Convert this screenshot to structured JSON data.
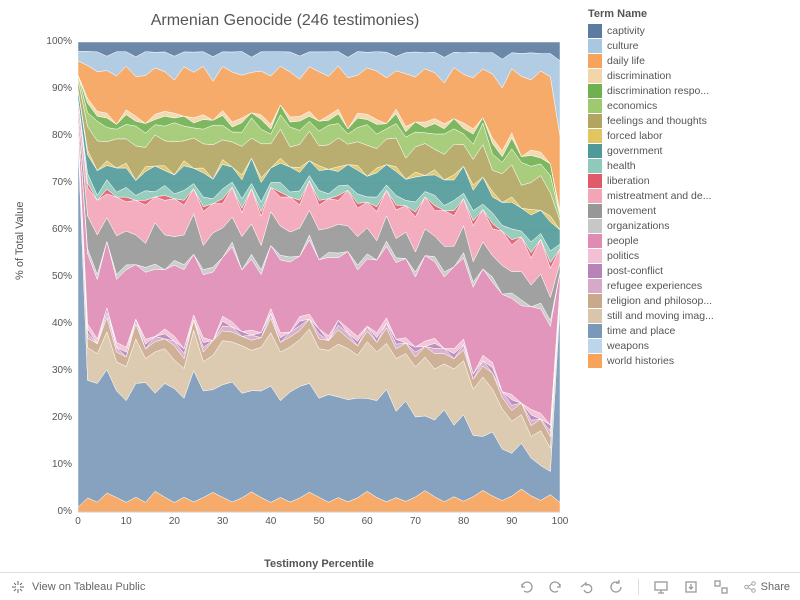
{
  "title": "Armenian Genocide (246 testimonies)",
  "y_axis_label": "% of Total Value",
  "x_axis_label": "Testimony Percentile",
  "legend_title": "Term Name",
  "toolbar_text": "View on Tableau Public",
  "share_label": "Share",
  "chart": {
    "type": "stacked-area",
    "xlim": [
      0,
      100
    ],
    "ylim": [
      0,
      100
    ],
    "xtick_step": 10,
    "ytick_step": 10,
    "background_color": "#ffffff",
    "grid_color": "#e8e8e8",
    "x": [
      0,
      2,
      4,
      6,
      8,
      10,
      12,
      14,
      16,
      18,
      20,
      22,
      24,
      26,
      28,
      30,
      32,
      34,
      36,
      38,
      40,
      42,
      44,
      46,
      48,
      50,
      52,
      54,
      56,
      58,
      60,
      62,
      64,
      66,
      68,
      70,
      72,
      74,
      76,
      78,
      80,
      82,
      84,
      86,
      88,
      90,
      92,
      94,
      96,
      98,
      100
    ],
    "series": [
      {
        "name": "world histories",
        "color": "#f7a35c",
        "values": [
          1,
          3,
          2,
          4,
          3,
          2,
          3,
          2,
          4,
          3,
          2,
          3,
          2,
          3,
          4,
          3,
          2,
          3,
          4,
          3,
          2,
          3,
          2,
          3,
          4,
          3,
          2,
          3,
          2,
          3,
          4,
          3,
          2,
          3,
          2,
          3,
          4,
          3,
          2,
          3,
          2,
          3,
          4,
          3,
          2,
          3,
          4,
          3,
          2,
          3,
          2
        ]
      },
      {
        "name": "time and place",
        "color": "#7a99b9",
        "values": [
          78,
          25,
          24,
          26,
          22,
          21,
          23,
          25,
          19,
          23,
          24,
          20,
          26,
          22,
          21,
          23,
          24,
          22,
          20,
          22,
          24,
          20,
          22,
          24,
          22,
          20,
          22,
          21,
          20,
          21,
          18,
          20,
          22,
          18,
          19,
          16,
          14,
          15,
          18,
          14,
          16,
          12,
          10,
          12,
          9,
          8,
          8,
          7,
          6,
          4,
          42
        ]
      },
      {
        "name": "still and moving imag...",
        "color": "#d9c5a9",
        "values": [
          2,
          7,
          6,
          8,
          6,
          7,
          9,
          5,
          8,
          7,
          6,
          6,
          8,
          6,
          7,
          9,
          8,
          10,
          8,
          9,
          11,
          10,
          9,
          10,
          11,
          10,
          9,
          11,
          10,
          9,
          11,
          10,
          9,
          11,
          9,
          10,
          11,
          10,
          9,
          11,
          10,
          9,
          11,
          8,
          7,
          6,
          5,
          4,
          6,
          4,
          2
        ]
      },
      {
        "name": "religion and philosop...",
        "color": "#c9a98c",
        "values": [
          1,
          2,
          2,
          3,
          2,
          2,
          3,
          2,
          2,
          2,
          3,
          2,
          2,
          2,
          3,
          2,
          2,
          2,
          2,
          2,
          3,
          2,
          2,
          2,
          2,
          2,
          2,
          3,
          2,
          2,
          2,
          2,
          3,
          2,
          2,
          2,
          2,
          3,
          2,
          2,
          2,
          2,
          2,
          3,
          2,
          2,
          2,
          2,
          2,
          2,
          1
        ]
      },
      {
        "name": "refugee experiences",
        "color": "#d6a9c9",
        "values": [
          0,
          1,
          0,
          1,
          1,
          0,
          1,
          0,
          1,
          0,
          1,
          1,
          0,
          1,
          0,
          1,
          1,
          0,
          1,
          0,
          1,
          0,
          1,
          1,
          0,
          1,
          0,
          1,
          1,
          0,
          1,
          0,
          1,
          1,
          0,
          1,
          0,
          1,
          1,
          0,
          1,
          0,
          1,
          0,
          1,
          1,
          0,
          1,
          0,
          1,
          0
        ]
      },
      {
        "name": "post-conflict",
        "color": "#b884b8",
        "values": [
          0,
          1,
          0,
          1,
          0,
          1,
          0,
          1,
          0,
          1,
          0,
          1,
          0,
          1,
          0,
          1,
          0,
          1,
          0,
          1,
          0,
          1,
          0,
          1,
          0,
          1,
          0,
          1,
          0,
          1,
          0,
          1,
          0,
          1,
          0,
          1,
          0,
          1,
          0,
          1,
          0,
          1,
          0,
          1,
          0,
          1,
          0,
          1,
          0,
          1,
          0
        ]
      },
      {
        "name": "politics",
        "color": "#f2bfd4",
        "values": [
          0,
          1,
          1,
          0,
          1,
          1,
          0,
          1,
          0,
          1,
          1,
          0,
          1,
          1,
          0,
          1,
          1,
          0,
          1,
          0,
          1,
          1,
          0,
          1,
          1,
          0,
          1,
          0,
          1,
          1,
          0,
          1,
          1,
          0,
          1,
          0,
          1,
          1,
          0,
          1,
          1,
          0,
          1,
          1,
          0,
          1,
          0,
          1,
          1,
          0,
          1
        ]
      },
      {
        "name": "people",
        "color": "#e08bb4",
        "values": [
          2,
          15,
          12,
          14,
          13,
          16,
          11,
          14,
          13,
          12,
          15,
          16,
          12,
          13,
          14,
          12,
          15,
          13,
          14,
          12,
          13,
          15,
          14,
          13,
          15,
          14,
          16,
          13,
          15,
          14,
          13,
          15,
          14,
          16,
          15,
          14,
          16,
          15,
          14,
          16,
          15,
          17,
          16,
          15,
          17,
          18,
          17,
          19,
          18,
          17,
          3
        ]
      },
      {
        "name": "organizations",
        "color": "#c7c7c7",
        "values": [
          0,
          1,
          1,
          0,
          1,
          1,
          0,
          1,
          1,
          0,
          1,
          1,
          0,
          1,
          1,
          0,
          1,
          0,
          1,
          1,
          0,
          1,
          1,
          0,
          1,
          0,
          1,
          1,
          0,
          1,
          1,
          0,
          1,
          1,
          0,
          1,
          0,
          1,
          1,
          0,
          1,
          1,
          0,
          1,
          0,
          1,
          1,
          0,
          1,
          1,
          0
        ]
      },
      {
        "name": "movement",
        "color": "#979797",
        "values": [
          2,
          7,
          8,
          5,
          8,
          7,
          6,
          5,
          8,
          7,
          5,
          6,
          8,
          5,
          7,
          6,
          5,
          7,
          6,
          5,
          7,
          6,
          5,
          6,
          5,
          6,
          5,
          6,
          5,
          6,
          5,
          4,
          5,
          4,
          5,
          4,
          5,
          4,
          5,
          4,
          5,
          4,
          5,
          4,
          5,
          4,
          5,
          4,
          5,
          4,
          2
        ]
      },
      {
        "name": "mistreatment and de...",
        "color": "#f3a5b8",
        "values": [
          2,
          6,
          7,
          5,
          8,
          6,
          7,
          8,
          5,
          7,
          8,
          6,
          5,
          7,
          6,
          5,
          6,
          5,
          7,
          6,
          5,
          6,
          7,
          5,
          6,
          5,
          6,
          5,
          7,
          6,
          5,
          6,
          5,
          6,
          5,
          7,
          6,
          5,
          7,
          6,
          5,
          7,
          6,
          5,
          6,
          5,
          6,
          5,
          6,
          5,
          3
        ]
      },
      {
        "name": "liberation",
        "color": "#e05a6a",
        "values": [
          0,
          1,
          0,
          1,
          0,
          1,
          0,
          1,
          0,
          1,
          0,
          1,
          0,
          1,
          0,
          1,
          0,
          1,
          0,
          1,
          0,
          1,
          0,
          1,
          0,
          1,
          0,
          1,
          0,
          1,
          0,
          1,
          0,
          1,
          0,
          1,
          0,
          1,
          0,
          1,
          0,
          1,
          0,
          1,
          0,
          1,
          0,
          1,
          0,
          1,
          0
        ]
      },
      {
        "name": "health",
        "color": "#8ec9b9",
        "values": [
          0,
          2,
          1,
          2,
          1,
          2,
          1,
          2,
          1,
          2,
          1,
          2,
          1,
          2,
          1,
          2,
          1,
          2,
          1,
          2,
          1,
          2,
          1,
          2,
          1,
          2,
          1,
          2,
          1,
          2,
          1,
          2,
          1,
          2,
          1,
          2,
          1,
          2,
          1,
          2,
          1,
          2,
          1,
          2,
          1,
          2,
          1,
          2,
          1,
          2,
          1
        ]
      },
      {
        "name": "government",
        "color": "#4f9a98",
        "values": [
          2,
          4,
          5,
          3,
          5,
          4,
          3,
          4,
          5,
          3,
          4,
          5,
          3,
          5,
          4,
          5,
          3,
          4,
          5,
          4,
          3,
          4,
          5,
          4,
          3,
          4,
          5,
          3,
          4,
          5,
          4,
          5,
          4,
          5,
          4,
          5,
          3,
          4,
          5,
          4,
          5,
          4,
          5,
          3,
          4,
          5,
          4,
          5,
          4,
          5,
          3
        ]
      },
      {
        "name": "forced labor",
        "color": "#e0c560",
        "values": [
          0,
          1,
          0,
          1,
          0,
          1,
          0,
          1,
          0,
          1,
          0,
          1,
          0,
          1,
          0,
          1,
          0,
          1,
          0,
          1,
          0,
          1,
          0,
          1,
          0,
          1,
          0,
          1,
          0,
          1,
          0,
          1,
          0,
          1,
          0,
          1,
          0,
          1,
          0,
          1,
          0,
          1,
          0,
          1,
          0,
          1,
          0,
          1,
          0,
          1,
          0
        ]
      },
      {
        "name": "feelings and thoughts",
        "color": "#b2a561",
        "values": [
          2,
          5,
          6,
          4,
          6,
          5,
          7,
          4,
          6,
          5,
          7,
          4,
          6,
          5,
          7,
          4,
          5,
          6,
          4,
          7,
          5,
          6,
          4,
          5,
          6,
          4,
          5,
          6,
          4,
          5,
          6,
          4,
          5,
          6,
          4,
          5,
          6,
          4,
          5,
          6,
          4,
          5,
          6,
          4,
          5,
          6,
          4,
          5,
          6,
          4,
          2
        ]
      },
      {
        "name": "economics",
        "color": "#9fc96f",
        "values": [
          1,
          3,
          4,
          3,
          2,
          3,
          4,
          3,
          2,
          3,
          4,
          3,
          2,
          3,
          4,
          3,
          2,
          3,
          4,
          3,
          2,
          3,
          4,
          3,
          2,
          3,
          4,
          3,
          2,
          3,
          4,
          3,
          2,
          3,
          4,
          3,
          2,
          3,
          4,
          3,
          2,
          3,
          4,
          3,
          2,
          3,
          4,
          3,
          2,
          3,
          1
        ]
      },
      {
        "name": "discrimination respo...",
        "color": "#6fb04f",
        "values": [
          0,
          2,
          1,
          2,
          1,
          2,
          1,
          2,
          1,
          2,
          1,
          2,
          1,
          2,
          1,
          2,
          1,
          2,
          1,
          2,
          1,
          2,
          1,
          2,
          1,
          2,
          1,
          2,
          1,
          2,
          1,
          2,
          1,
          2,
          1,
          2,
          1,
          2,
          1,
          2,
          1,
          2,
          1,
          2,
          1,
          2,
          1,
          2,
          1,
          2,
          0
        ]
      },
      {
        "name": "discrimination",
        "color": "#f2d6a9",
        "values": [
          0,
          1,
          1,
          1,
          0,
          1,
          1,
          0,
          1,
          1,
          1,
          0,
          1,
          1,
          0,
          1,
          1,
          1,
          0,
          1,
          1,
          0,
          1,
          1,
          1,
          0,
          1,
          1,
          0,
          1,
          1,
          1,
          0,
          1,
          1,
          0,
          1,
          1,
          1,
          0,
          1,
          1,
          0,
          1,
          1,
          1,
          0,
          1,
          1,
          0,
          1
        ]
      },
      {
        "name": "daily life",
        "color": "#f7a35c",
        "values": [
          3,
          7,
          8,
          9,
          10,
          9,
          8,
          10,
          9,
          8,
          7,
          10,
          9,
          10,
          8,
          9,
          10,
          9,
          8,
          9,
          10,
          8,
          9,
          8,
          9,
          10,
          8,
          9,
          10,
          8,
          9,
          10,
          9,
          8,
          10,
          9,
          10,
          9,
          8,
          10,
          9,
          10,
          9,
          12,
          11,
          12,
          14,
          13,
          14,
          15,
          16
        ]
      },
      {
        "name": "culture",
        "color": "#a9c7e0",
        "values": [
          2,
          3,
          4,
          3,
          5,
          3,
          4,
          5,
          3,
          4,
          5,
          3,
          4,
          3,
          5,
          3,
          4,
          5,
          3,
          4,
          5,
          3,
          4,
          5,
          3,
          4,
          5,
          3,
          4,
          5,
          3,
          4,
          5,
          3,
          4,
          5,
          3,
          4,
          5,
          3,
          4,
          5,
          3,
          4,
          5,
          3,
          4,
          5,
          3,
          4,
          16
        ]
      },
      {
        "name": "captivity",
        "color": "#5b7ca0",
        "values": [
          2,
          2,
          2,
          3,
          2,
          2,
          3,
          2,
          2,
          2,
          3,
          2,
          2,
          2,
          3,
          2,
          2,
          2,
          3,
          2,
          2,
          2,
          2,
          3,
          2,
          2,
          2,
          2,
          3,
          2,
          2,
          2,
          2,
          3,
          2,
          2,
          2,
          2,
          3,
          2,
          2,
          2,
          2,
          2,
          3,
          2,
          2,
          2,
          2,
          2,
          4
        ]
      }
    ]
  }
}
